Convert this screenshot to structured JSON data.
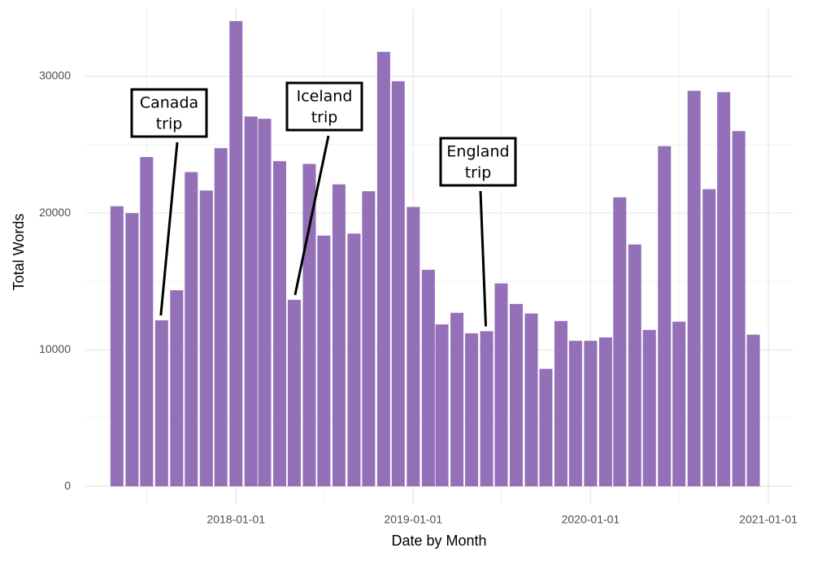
{
  "chart_data": {
    "type": "bar",
    "xlabel": "Date by Month",
    "ylabel": "Total Words",
    "color": "#9370b8",
    "grid": true,
    "x": [
      "2017-05-01",
      "2017-06-01",
      "2017-07-01",
      "2017-08-01",
      "2017-09-01",
      "2017-10-01",
      "2017-11-01",
      "2017-12-01",
      "2018-01-01",
      "2018-02-01",
      "2018-03-01",
      "2018-04-01",
      "2018-05-01",
      "2018-06-01",
      "2018-07-01",
      "2018-08-01",
      "2018-09-01",
      "2018-10-01",
      "2018-11-01",
      "2018-12-01",
      "2019-01-01",
      "2019-02-01",
      "2019-03-01",
      "2019-04-01",
      "2019-05-01",
      "2019-06-01",
      "2019-07-01",
      "2019-08-01",
      "2019-09-01",
      "2019-10-01",
      "2019-11-01",
      "2019-12-01",
      "2020-01-01",
      "2020-02-01",
      "2020-03-01",
      "2020-04-01",
      "2020-05-01",
      "2020-06-01",
      "2020-07-01",
      "2020-08-01",
      "2020-09-01",
      "2020-10-01",
      "2020-11-01",
      "2020-12-01"
    ],
    "values": [
      20500,
      20000,
      24100,
      12150,
      14350,
      23000,
      21650,
      24750,
      34050,
      27070,
      26900,
      23800,
      13650,
      23600,
      18350,
      22100,
      18500,
      21600,
      31800,
      29650,
      20450,
      15850,
      11850,
      12700,
      11200,
      11350,
      14850,
      13350,
      12650,
      8600,
      12100,
      10650,
      10650,
      10900,
      21150,
      17700,
      11450,
      24900,
      12050,
      28950,
      21750,
      28850,
      26000,
      11100
    ],
    "xlim": [
      "2017-02-25",
      "2021-02-20"
    ],
    "xticks": [
      "2018-01-01",
      "2019-01-01",
      "2020-01-01",
      "2021-01-01"
    ],
    "x_minor_ticks": [
      "2017-07-01",
      "2018-07-01",
      "2019-07-01",
      "2020-07-01"
    ],
    "ylim": [
      -1300,
      35000
    ],
    "yticks": [
      0,
      10000,
      20000,
      30000
    ],
    "y_minor_ticks": [
      5000,
      15000,
      25000
    ],
    "annotations": [
      {
        "text": [
          "Canada",
          "trip"
        ],
        "x": "2017-08-01"
      },
      {
        "text": [
          "Iceland",
          "trip"
        ],
        "x": "2018-05-01"
      },
      {
        "text": [
          "England",
          "trip"
        ],
        "x": "2019-06-01"
      }
    ]
  }
}
